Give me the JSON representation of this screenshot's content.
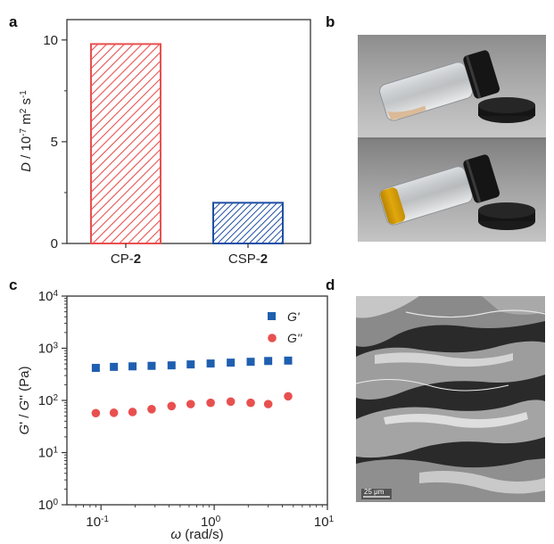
{
  "panels": {
    "a": "a",
    "b": "b",
    "c": "c",
    "d": "d"
  },
  "colors": {
    "cp2": "#e8504f",
    "csp2": "#1f4fa3",
    "g_prime": "#1f5fb0",
    "g_double": "#e8504f"
  },
  "chart_data": [
    {
      "type": "bar",
      "panel": "a",
      "categories": [
        {
          "name": "CP-",
          "suffix": "2"
        },
        {
          "name": "CSP-",
          "suffix": "2"
        }
      ],
      "values": [
        9.8,
        2.0
      ],
      "ylabel": "D / 10-7 m2 s-1",
      "ylim": [
        0,
        11
      ],
      "yticks": [
        "0",
        "5",
        "10"
      ],
      "fill": "hatched"
    },
    {
      "type": "scatter",
      "panel": "c",
      "xscale": "log",
      "yscale": "log",
      "xlim": [
        0.05,
        10
      ],
      "ylim": [
        1,
        10000
      ],
      "xlabel": "ω (rad/s)",
      "ylabel": "G' / G'' (Pa)",
      "legend_position": "top-right",
      "series": [
        {
          "name": "G'",
          "marker": "square",
          "x": [
            0.09,
            0.13,
            0.19,
            0.28,
            0.42,
            0.62,
            0.93,
            1.4,
            2.1,
            3.0,
            4.5
          ],
          "values": [
            420,
            440,
            450,
            460,
            470,
            490,
            510,
            530,
            550,
            570,
            580
          ]
        },
        {
          "name": "G''",
          "marker": "circle",
          "x": [
            0.09,
            0.13,
            0.19,
            0.28,
            0.42,
            0.62,
            0.93,
            1.4,
            2.1,
            3.0,
            4.5
          ],
          "values": [
            57,
            58,
            60,
            68,
            78,
            85,
            90,
            95,
            90,
            85,
            120
          ]
        }
      ]
    }
  ],
  "photo_b": {
    "description_icon": "vial-inversion-photo-icon"
  },
  "photo_d": {
    "scale_bar": "25 μm",
    "description_icon": "sem-micrograph-icon"
  }
}
